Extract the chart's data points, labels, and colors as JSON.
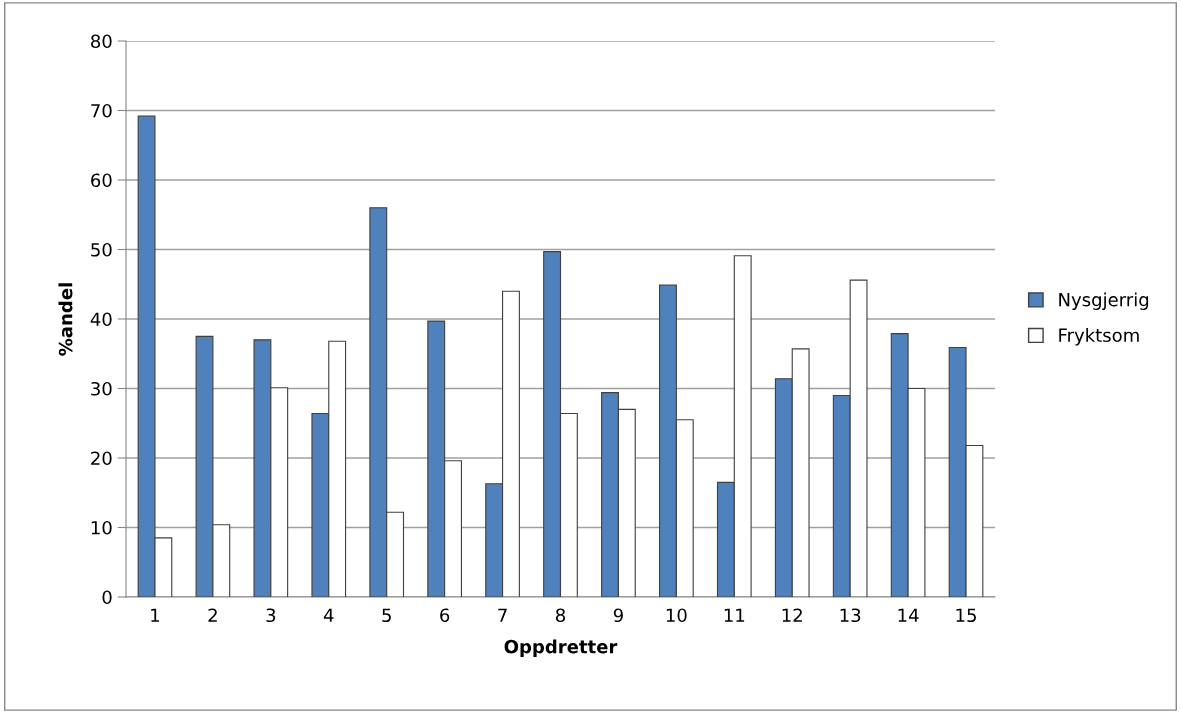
{
  "chart_data": {
    "type": "bar",
    "xlabel": "Oppdretter",
    "ylabel": "%andel",
    "categories": [
      "1",
      "2",
      "3",
      "4",
      "5",
      "6",
      "7",
      "8",
      "9",
      "10",
      "11",
      "12",
      "13",
      "14",
      "15"
    ],
    "series": [
      {
        "name": "Nysgjerrig",
        "color": "#4f81bd",
        "values": [
          69.2,
          37.5,
          37,
          26.4,
          56,
          39.7,
          16.3,
          49.7,
          29.4,
          44.9,
          16.5,
          31.4,
          29,
          37.9,
          35.9
        ]
      },
      {
        "name": "Fryktsom",
        "color": "#ffffff",
        "values": [
          8.5,
          10.4,
          30.1,
          36.8,
          12.2,
          19.6,
          44,
          26.4,
          27,
          25.5,
          49.1,
          35.7,
          45.6,
          30,
          21.8
        ]
      }
    ],
    "ylim": [
      0,
      80
    ],
    "yticks": [
      0,
      10,
      20,
      30,
      40,
      50,
      60,
      70,
      80
    ],
    "grid": "y",
    "legend": "right"
  }
}
